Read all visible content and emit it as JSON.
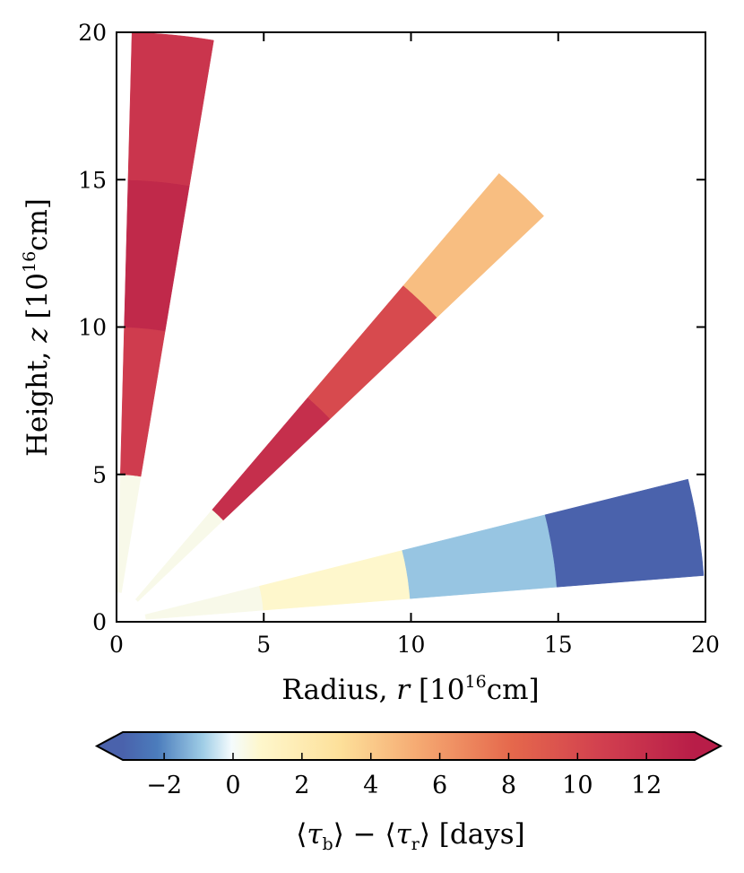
{
  "chart_data": {
    "type": "heatmap",
    "subtype": "polar-wedge-map",
    "xlabel": "Radius, r [10^16 cm]",
    "ylabel": "Height, z [10^16 cm]",
    "xlabel_parts": {
      "prefix": "Radius, ",
      "var": "r",
      "unit_pre": " [10",
      "exp": "16",
      "unit_post": "cm]"
    },
    "ylabel_parts": {
      "prefix": "Height, ",
      "var": "z",
      "unit_pre": " [10",
      "exp": "16",
      "unit_post": "cm]"
    },
    "xlim": [
      0,
      20
    ],
    "ylim": [
      0,
      20
    ],
    "xticks": [
      0,
      5,
      10,
      15,
      20
    ],
    "yticks": [
      0,
      5,
      10,
      15,
      20
    ],
    "xtick_labels": [
      "0",
      "5",
      "10",
      "15",
      "20"
    ],
    "ytick_labels": [
      "0",
      "5",
      "10",
      "15",
      "20"
    ],
    "wedges": [
      {
        "name": "wedge-steep",
        "angle_min_deg": 80.5,
        "angle_max_deg": 88.5,
        "radius_edges": [
          1,
          5,
          10,
          15,
          20
        ],
        "values": [
          0.3,
          11.0,
          12.5,
          11.5
        ]
      },
      {
        "name": "wedge-middle",
        "angle_min_deg": 43.5,
        "angle_max_deg": 49.5,
        "radius_edges": [
          1,
          5,
          10,
          15,
          20
        ],
        "values": [
          0.3,
          12.0,
          10.0,
          4.5
        ]
      },
      {
        "name": "wedge-shallow",
        "angle_min_deg": 4.5,
        "angle_max_deg": 14.0,
        "radius_edges": [
          1,
          5,
          10,
          15,
          20
        ],
        "values": [
          0.3,
          0.8,
          -1.0,
          -3.2
        ]
      }
    ],
    "colorbar": {
      "min": -3.2,
      "max": 13.4,
      "ticks": [
        -2,
        0,
        2,
        4,
        6,
        8,
        10,
        12
      ],
      "tick_labels": [
        "−2",
        "0",
        "2",
        "4",
        "6",
        "8",
        "10",
        "12"
      ],
      "extend": "both",
      "colormap": "RdYlBu_r"
    },
    "colorbar_label": "⟨τ_b⟩ − ⟨τ_r⟩ [days]",
    "colorbar_label_parts": {
      "lang": "⟨",
      "tau": "τ",
      "sub_b": "b",
      "rang": "⟩",
      "minus": " − ",
      "sub_r": "r",
      "unit": " [days]"
    }
  }
}
